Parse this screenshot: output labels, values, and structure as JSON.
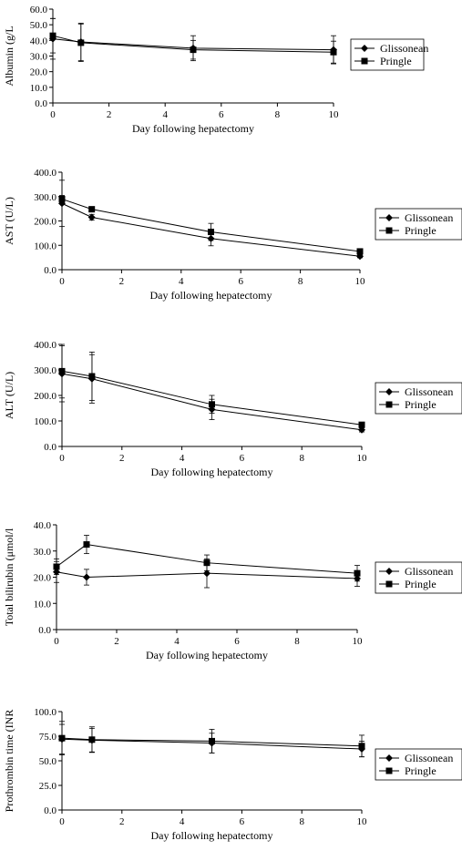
{
  "chart_data": [
    {
      "type": "line",
      "xlabel": "Day following hepatectomy",
      "ylabel": "Albumin (g/L",
      "ylim": [
        0,
        60
      ],
      "yticks": [
        "0.0",
        "10.0",
        "20.0",
        "30.0",
        "40.0",
        "50.0",
        "60.0"
      ],
      "xlim": [
        0,
        10
      ],
      "xticks": [
        "0",
        "2",
        "4",
        "6",
        "8",
        "10"
      ],
      "legend": "right",
      "series": [
        {
          "name": "Glissonean",
          "marker": "diamond",
          "x": [
            0,
            1,
            5,
            10
          ],
          "y": [
            41,
            39,
            35,
            34
          ],
          "err": [
            13,
            12,
            8,
            9
          ]
        },
        {
          "name": "Pringle",
          "marker": "square",
          "x": [
            0,
            1,
            5,
            10
          ],
          "y": [
            43,
            38.5,
            34,
            32.5
          ],
          "err": [
            11,
            12,
            6,
            7
          ]
        }
      ]
    },
    {
      "type": "line",
      "xlabel": "Day following hepatectomy",
      "ylabel": "AST (U/L)",
      "ylim": [
        0,
        400
      ],
      "yticks": [
        "0.0",
        "100.0",
        "200.0",
        "300.0",
        "400.0"
      ],
      "xlim": [
        0,
        10
      ],
      "xticks": [
        "0",
        "2",
        "4",
        "6",
        "8",
        "10"
      ],
      "legend": "right",
      "series": [
        {
          "name": "Glissonean",
          "marker": "diamond",
          "x": [
            0,
            1,
            5,
            10
          ],
          "y": [
            272,
            215,
            128,
            55
          ],
          "err": [
            95,
            12,
            30,
            6
          ]
        },
        {
          "name": "Pringle",
          "marker": "square",
          "x": [
            0,
            1,
            5,
            10
          ],
          "y": [
            290,
            248,
            155,
            75
          ],
          "err": [
            15,
            10,
            35,
            10
          ]
        }
      ]
    },
    {
      "type": "line",
      "xlabel": "Day following hepatectomy",
      "ylabel": "ALT (U/L)",
      "ylim": [
        0,
        400
      ],
      "yticks": [
        "0.0",
        "100.0",
        "200.0",
        "300.0",
        "400.0"
      ],
      "xlim": [
        0,
        10
      ],
      "xticks": [
        "0",
        "2",
        "4",
        "6",
        "8",
        "10"
      ],
      "legend": "right",
      "series": [
        {
          "name": "Glissonean",
          "marker": "diamond",
          "x": [
            0,
            1,
            5,
            10
          ],
          "y": [
            285,
            265,
            145,
            65
          ],
          "err": [
            110,
            95,
            40,
            8
          ]
        },
        {
          "name": "Pringle",
          "marker": "square",
          "x": [
            0,
            1,
            5,
            10
          ],
          "y": [
            295,
            275,
            165,
            85
          ],
          "err": [
            105,
            95,
            35,
            10
          ]
        }
      ]
    },
    {
      "type": "line",
      "xlabel": "Day following hepatectomy",
      "ylabel": "Total bilirubin (μmol/l",
      "ylim": [
        0,
        40
      ],
      "yticks": [
        "0.0",
        "10.0",
        "20.0",
        "30.0",
        "40.0"
      ],
      "xlim": [
        0,
        10
      ],
      "xticks": [
        "0",
        "2",
        "4",
        "6",
        "8",
        "10"
      ],
      "legend": "right",
      "series": [
        {
          "name": "Glissonean",
          "marker": "diamond",
          "x": [
            0,
            1,
            5,
            10
          ],
          "y": [
            22,
            20,
            21.5,
            19.5
          ],
          "err": [
            4,
            3,
            5.5,
            3
          ]
        },
        {
          "name": "Pringle",
          "marker": "square",
          "x": [
            0,
            1,
            5,
            10
          ],
          "y": [
            24,
            32.5,
            25.5,
            21.5
          ],
          "err": [
            3,
            3.5,
            3,
            3
          ]
        }
      ]
    },
    {
      "type": "line",
      "xlabel": "Day following hepatectomy",
      "ylabel": "Prothrombin time (INR",
      "ylim": [
        0,
        100
      ],
      "yticks": [
        "0.0",
        "25.0",
        "50.0",
        "75.0",
        "100.0"
      ],
      "xlim": [
        0,
        10
      ],
      "xticks": [
        "0",
        "2",
        "4",
        "6",
        "8",
        "10"
      ],
      "legend": "right",
      "series": [
        {
          "name": "Glissonean",
          "marker": "diamond",
          "x": [
            0,
            1,
            5,
            10
          ],
          "y": [
            72,
            71,
            68,
            62
          ],
          "err": [
            15,
            12,
            10,
            8
          ]
        },
        {
          "name": "Pringle",
          "marker": "square",
          "x": [
            0,
            1,
            5,
            10
          ],
          "y": [
            73,
            71.5,
            70,
            65
          ],
          "err": [
            17,
            13,
            12,
            11
          ]
        }
      ]
    }
  ]
}
